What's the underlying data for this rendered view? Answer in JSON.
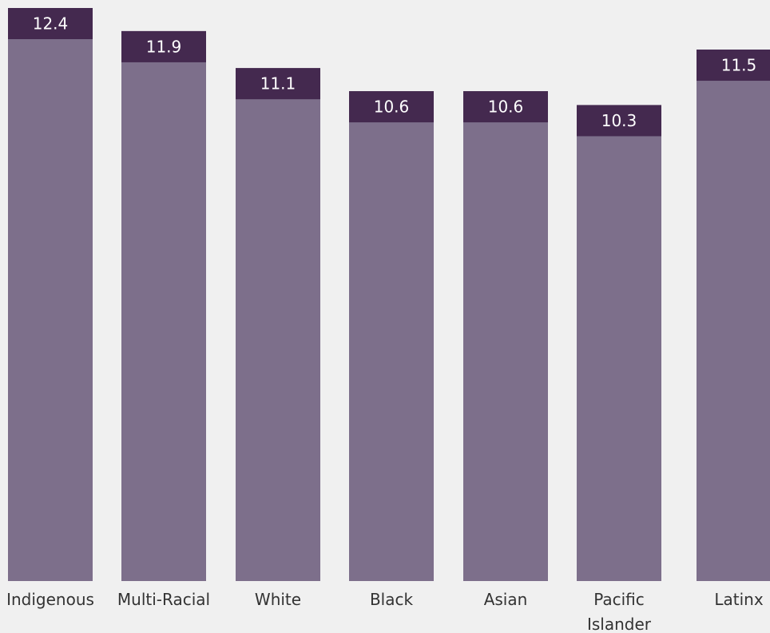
{
  "chart_data": {
    "type": "bar",
    "categories": [
      [
        "Indigenous"
      ],
      [
        "Multi-Racial"
      ],
      [
        "White"
      ],
      [
        "Black"
      ],
      [
        "Asian"
      ],
      [
        "Pacific",
        "Islander"
      ],
      [
        "Latinx"
      ]
    ],
    "values": [
      12.4,
      11.9,
      11.1,
      10.6,
      10.6,
      10.3,
      11.5
    ],
    "value_labels": [
      "12.4",
      "11.9",
      "11.1",
      "10.6",
      "10.6",
      "10.3",
      "11.5"
    ],
    "title": "",
    "xlabel": "",
    "ylabel": "",
    "ylim": [
      0,
      12.4
    ],
    "grid": false,
    "legend": "none",
    "colors": {
      "bar": "#7d6f8b",
      "label_cap": "#44294f",
      "background": "#f0f0f0",
      "value_text": "#ffffff",
      "category_text": "#333333"
    }
  }
}
